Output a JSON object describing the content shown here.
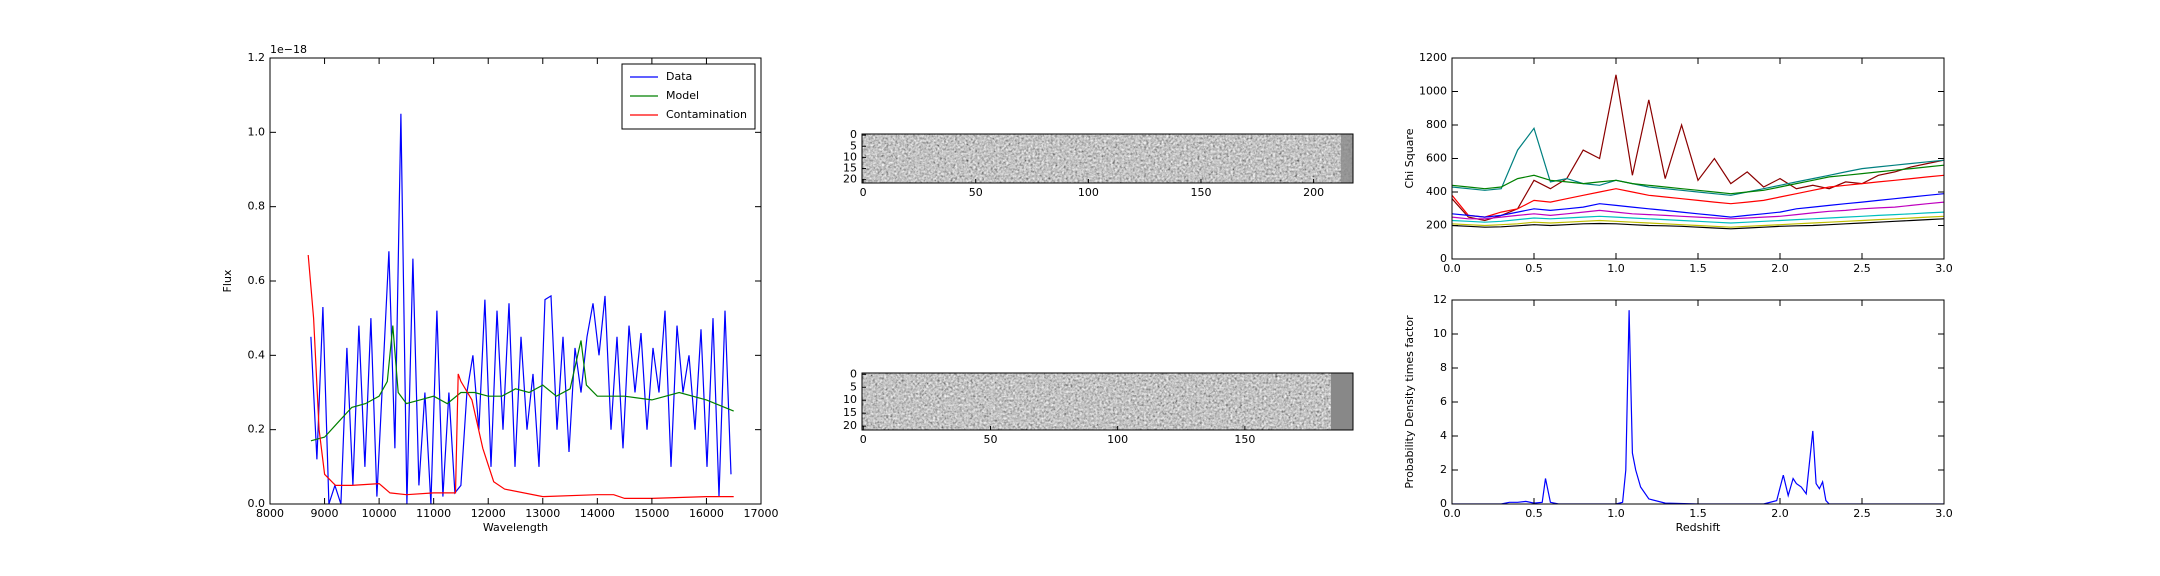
{
  "chart_data": [
    {
      "type": "line",
      "offset_label": "1e−18",
      "xlabel": "Wavelength",
      "ylabel": "Flux",
      "xlim": [
        8000,
        17000
      ],
      "xticks": [
        8000,
        9000,
        10000,
        11000,
        12000,
        13000,
        14000,
        15000,
        16000,
        17000
      ],
      "ylim": [
        0,
        1.2
      ],
      "yticks": [
        {
          "value": 0,
          "label": "0.0"
        },
        0.2,
        0.4,
        0.6,
        0.8,
        {
          "value": 1,
          "label": "1.0"
        },
        1.2
      ],
      "legend": "upper right",
      "series": [
        {
          "name": "Data",
          "color": "#0000ff",
          "x": [
            8750,
            8860,
            8970,
            9080,
            9190,
            9300,
            9410,
            9520,
            9630,
            9740,
            9850,
            9960,
            10070,
            10180,
            10290,
            10400,
            10510,
            10620,
            10730,
            10840,
            10950,
            11060,
            11170,
            11280,
            11390,
            11500,
            11610,
            11720,
            11830,
            11940,
            12050,
            12160,
            12270,
            12380,
            12490,
            12600,
            12710,
            12820,
            12930,
            13040,
            13150,
            13260,
            13370,
            13480,
            13590,
            13700,
            13810,
            13920,
            14030,
            14140,
            14250,
            14360,
            14470,
            14580,
            14690,
            14800,
            14910,
            15020,
            15130,
            15240,
            15350,
            15460,
            15570,
            15680,
            15790,
            15900,
            16010,
            16120,
            16230,
            16340,
            16450
          ],
          "values": [
            0.45,
            0.12,
            0.53,
            0.0,
            0.05,
            0.0,
            0.42,
            0.05,
            0.48,
            0.1,
            0.5,
            0.02,
            0.35,
            0.68,
            0.15,
            1.05,
            0.0,
            0.66,
            0.05,
            0.3,
            0.0,
            0.52,
            0.02,
            0.3,
            0.03,
            0.05,
            0.3,
            0.4,
            0.2,
            0.55,
            0.1,
            0.52,
            0.2,
            0.54,
            0.1,
            0.45,
            0.2,
            0.35,
            0.1,
            0.55,
            0.56,
            0.2,
            0.45,
            0.14,
            0.42,
            0.3,
            0.45,
            0.54,
            0.4,
            0.56,
            0.2,
            0.45,
            0.15,
            0.48,
            0.3,
            0.46,
            0.2,
            0.42,
            0.3,
            0.52,
            0.1,
            0.48,
            0.3,
            0.4,
            0.2,
            0.47,
            0.1,
            0.5,
            0.02,
            0.52,
            0.08
          ]
        },
        {
          "name": "Model",
          "color": "#008000",
          "x": [
            8750,
            9000,
            9250,
            9500,
            9750,
            10000,
            10150,
            10250,
            10350,
            10500,
            10750,
            11000,
            11250,
            11500,
            11750,
            12000,
            12250,
            12500,
            12750,
            13000,
            13250,
            13500,
            13700,
            13800,
            14000,
            14500,
            15000,
            15500,
            16000,
            16500
          ],
          "values": [
            0.17,
            0.18,
            0.22,
            0.26,
            0.27,
            0.29,
            0.33,
            0.48,
            0.3,
            0.27,
            0.28,
            0.29,
            0.27,
            0.3,
            0.3,
            0.29,
            0.29,
            0.31,
            0.3,
            0.32,
            0.29,
            0.31,
            0.44,
            0.32,
            0.29,
            0.29,
            0.28,
            0.3,
            0.28,
            0.25
          ]
        },
        {
          "name": "Contamination",
          "color": "#ff0000",
          "x": [
            8700,
            8800,
            8900,
            9000,
            9200,
            9500,
            10000,
            10200,
            10500,
            11000,
            11400,
            11450,
            11500,
            11700,
            11900,
            12100,
            12300,
            13000,
            14000,
            14300,
            14500,
            15000,
            16000,
            16500
          ],
          "values": [
            0.67,
            0.5,
            0.2,
            0.08,
            0.05,
            0.05,
            0.055,
            0.03,
            0.025,
            0.03,
            0.03,
            0.35,
            0.33,
            0.28,
            0.15,
            0.06,
            0.04,
            0.02,
            0.025,
            0.025,
            0.015,
            0.015,
            0.02,
            0.02
          ]
        }
      ]
    },
    {
      "type": "image",
      "xlim": [
        -0.5,
        217.5
      ],
      "xticks": [
        0,
        50,
        100,
        150,
        200
      ],
      "ylim": [
        -0.5,
        21.5
      ],
      "yticks": [
        0,
        5,
        10,
        15,
        20
      ],
      "y_inverted": true
    },
    {
      "type": "image",
      "xlim": [
        -0.5,
        192.5
      ],
      "xticks": [
        0,
        50,
        100,
        150
      ],
      "ylim": [
        -0.5,
        21.5
      ],
      "yticks": [
        0,
        5,
        10,
        15,
        20
      ],
      "y_inverted": true
    },
    {
      "type": "line",
      "ylabel": "Chi Square",
      "xlim": [
        0,
        3
      ],
      "xticks": [
        {
          "value": 0,
          "label": "0.0"
        },
        0.5,
        {
          "value": 1,
          "label": "1.0"
        },
        1.5,
        {
          "value": 2,
          "label": "2.0"
        },
        2.5,
        {
          "value": 3,
          "label": "3.0"
        }
      ],
      "ylim": [
        0,
        1200
      ],
      "yticks": [
        0,
        200,
        400,
        600,
        800,
        1000,
        1200
      ],
      "x": [
        0,
        0.1,
        0.2,
        0.3,
        0.4,
        0.5,
        0.6,
        0.7,
        0.8,
        0.9,
        1.0,
        1.1,
        1.2,
        1.3,
        1.4,
        1.5,
        1.6,
        1.7,
        1.8,
        1.9,
        2.0,
        2.1,
        2.2,
        2.3,
        2.4,
        2.5,
        2.6,
        2.7,
        2.8,
        2.9,
        3.0
      ],
      "series": [
        {
          "color": "#8b0000",
          "values": [
            360,
            250,
            230,
            260,
            300,
            470,
            420,
            480,
            650,
            600,
            1100,
            500,
            950,
            480,
            800,
            470,
            600,
            450,
            520,
            430,
            480,
            420,
            440,
            420,
            460,
            450,
            500,
            520,
            550,
            570,
            590
          ]
        },
        {
          "color": "#008080",
          "values": [
            430,
            420,
            410,
            420,
            650,
            780,
            460,
            480,
            450,
            440,
            470,
            450,
            430,
            420,
            410,
            400,
            390,
            380,
            400,
            420,
            440,
            460,
            480,
            500,
            520,
            540,
            550,
            560,
            570,
            580,
            590
          ]
        },
        {
          "color": "#008000",
          "values": [
            440,
            430,
            420,
            430,
            480,
            500,
            470,
            460,
            450,
            460,
            470,
            450,
            440,
            430,
            420,
            410,
            400,
            390,
            400,
            410,
            430,
            450,
            470,
            490,
            500,
            510,
            520,
            530,
            540,
            550,
            560
          ]
        },
        {
          "color": "#ff0000",
          "values": [
            380,
            260,
            250,
            280,
            300,
            350,
            340,
            360,
            380,
            400,
            420,
            400,
            380,
            370,
            360,
            350,
            340,
            330,
            340,
            350,
            370,
            390,
            410,
            430,
            440,
            450,
            460,
            470,
            480,
            490,
            500
          ]
        },
        {
          "color": "#0000ff",
          "values": [
            270,
            260,
            250,
            260,
            280,
            300,
            290,
            300,
            310,
            330,
            320,
            310,
            300,
            290,
            280,
            270,
            260,
            250,
            260,
            270,
            280,
            300,
            310,
            320,
            330,
            340,
            350,
            360,
            370,
            380,
            390
          ]
        },
        {
          "color": "#bf00bf",
          "values": [
            250,
            240,
            240,
            250,
            260,
            270,
            260,
            270,
            280,
            290,
            280,
            270,
            265,
            260,
            255,
            250,
            245,
            240,
            245,
            250,
            255,
            265,
            275,
            285,
            290,
            300,
            305,
            310,
            320,
            330,
            340
          ]
        },
        {
          "color": "#00bfbf",
          "values": [
            230,
            225,
            220,
            225,
            235,
            245,
            240,
            245,
            250,
            255,
            250,
            245,
            240,
            235,
            230,
            225,
            220,
            215,
            220,
            225,
            230,
            235,
            240,
            245,
            250,
            255,
            260,
            265,
            270,
            275,
            280
          ]
        },
        {
          "color": "#bfbf00",
          "values": [
            210,
            205,
            200,
            205,
            210,
            220,
            215,
            220,
            225,
            230,
            225,
            220,
            215,
            210,
            205,
            200,
            195,
            190,
            195,
            200,
            205,
            210,
            215,
            220,
            225,
            230,
            235,
            240,
            245,
            250,
            255
          ]
        },
        {
          "color": "#000000",
          "values": [
            200,
            195,
            190,
            192,
            198,
            205,
            200,
            205,
            210,
            212,
            210,
            205,
            200,
            198,
            195,
            190,
            185,
            180,
            185,
            190,
            195,
            198,
            200,
            205,
            210,
            215,
            220,
            225,
            230,
            235,
            240
          ]
        }
      ]
    },
    {
      "type": "line",
      "xlabel": "Redshift",
      "ylabel": "Probability Density times factor",
      "xlim": [
        0,
        3
      ],
      "xticks": [
        {
          "value": 0,
          "label": "0.0"
        },
        0.5,
        {
          "value": 1,
          "label": "1.0"
        },
        1.5,
        {
          "value": 2,
          "label": "2.0"
        },
        2.5,
        {
          "value": 3,
          "label": "3.0"
        }
      ],
      "ylim": [
        0,
        12
      ],
      "yticks": [
        0,
        2,
        4,
        6,
        8,
        10,
        12
      ],
      "series": [
        {
          "color": "#0000ff",
          "x": [
            0,
            0.3,
            0.35,
            0.4,
            0.45,
            0.5,
            0.55,
            0.57,
            0.6,
            0.65,
            1.0,
            1.04,
            1.06,
            1.08,
            1.1,
            1.12,
            1.15,
            1.2,
            1.3,
            1.5,
            1.9,
            1.98,
            2.02,
            2.05,
            2.08,
            2.1,
            2.13,
            2.16,
            2.2,
            2.22,
            2.24,
            2.26,
            2.28,
            2.3,
            2.5,
            3.0
          ],
          "values": [
            0,
            0,
            0.1,
            0.1,
            0.15,
            0.05,
            0.1,
            1.5,
            0.1,
            0,
            0,
            0.1,
            2,
            11.4,
            3,
            2,
            1,
            0.3,
            0.05,
            0,
            0,
            0.2,
            1.7,
            0.5,
            1.5,
            1.2,
            1,
            0.6,
            4.3,
            1.2,
            0.9,
            1.3,
            0.2,
            0,
            0,
            0
          ]
        }
      ]
    }
  ]
}
